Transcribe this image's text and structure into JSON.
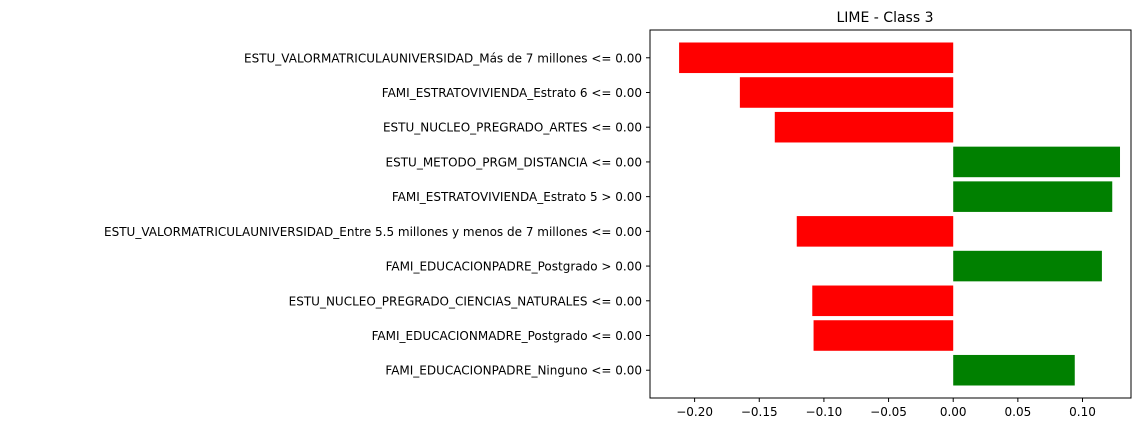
{
  "chart_data": {
    "type": "bar",
    "orientation": "horizontal",
    "title": "LIME - Class 3",
    "xlabel": "",
    "ylabel": "",
    "xlim": [
      -0.2345,
      0.1375
    ],
    "xticks": [
      {
        "value": -0.2,
        "label": "−0.20"
      },
      {
        "value": -0.15,
        "label": "−0.15"
      },
      {
        "value": -0.1,
        "label": "−0.10"
      },
      {
        "value": -0.05,
        "label": "−0.05"
      },
      {
        "value": 0.0,
        "label": "0.00"
      },
      {
        "value": 0.05,
        "label": "0.05"
      },
      {
        "value": 0.1,
        "label": "0.10"
      }
    ],
    "categories": [
      "ESTU_VALORMATRICULAUNIVERSIDAD_Más de 7 millones <= 0.00",
      "FAMI_ESTRATOVIVIENDA_Estrato 6 <= 0.00",
      "ESTU_NUCLEO_PREGRADO_ARTES <= 0.00",
      "ESTU_METODO_PRGM_DISTANCIA <= 0.00",
      "FAMI_ESTRATOVIVIENDA_Estrato 5 > 0.00",
      "ESTU_VALORMATRICULAUNIVERSIDAD_Entre 5.5 millones y menos de 7 millones <= 0.00",
      "FAMI_EDUCACIONPADRE_Postgrado > 0.00",
      "ESTU_NUCLEO_PREGRADO_CIENCIAS_NATURALES <= 0.00",
      "FAMI_EDUCACIONMADRE_Postgrado <= 0.00",
      "FAMI_EDUCACIONPADRE_Ninguno <= 0.00"
    ],
    "values": [
      -0.212,
      -0.165,
      -0.138,
      0.129,
      0.123,
      -0.121,
      0.115,
      -0.109,
      -0.108,
      0.094
    ],
    "colors": {
      "positive": "#008000",
      "negative": "#ff0000"
    },
    "grid": false,
    "legend": "none"
  }
}
